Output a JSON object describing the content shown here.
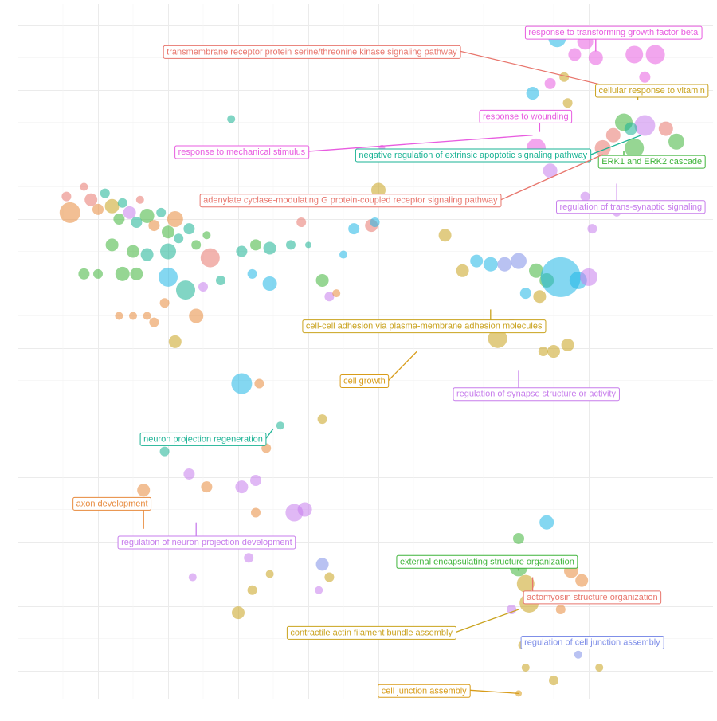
{
  "chart_data": {
    "type": "scatter",
    "title": "",
    "xlabel": "",
    "ylabel": "",
    "xlim": [
      0,
      10
    ],
    "ylim": [
      0,
      10
    ],
    "grid": true,
    "legend": "none",
    "colors": {
      "red": "#e8766d",
      "orange": "#e88a3c",
      "olive": "#c9a21d",
      "green": "#3fb43a",
      "teal": "#1ab394",
      "cyan": "#1fb6e6",
      "blue": "#7f8fe8",
      "purple": "#c77dec",
      "magenta": "#e85ce0",
      "gold": "#d89c1a",
      "grid": "#ebebeb"
    },
    "points": [
      {
        "x": 0.6,
        "y": 7.1,
        "s": 13,
        "c": "orange"
      },
      {
        "x": 0.55,
        "y": 7.35,
        "s": 6,
        "c": "red"
      },
      {
        "x": 0.8,
        "y": 7.5,
        "s": 5,
        "c": "red"
      },
      {
        "x": 0.9,
        "y": 7.3,
        "s": 8,
        "c": "red"
      },
      {
        "x": 1.0,
        "y": 7.15,
        "s": 7,
        "c": "orange"
      },
      {
        "x": 1.1,
        "y": 7.4,
        "s": 6,
        "c": "teal"
      },
      {
        "x": 1.2,
        "y": 7.2,
        "s": 9,
        "c": "olive"
      },
      {
        "x": 1.3,
        "y": 7.0,
        "s": 7,
        "c": "green"
      },
      {
        "x": 1.35,
        "y": 7.25,
        "s": 6,
        "c": "teal"
      },
      {
        "x": 1.45,
        "y": 7.1,
        "s": 8,
        "c": "purple"
      },
      {
        "x": 1.55,
        "y": 6.95,
        "s": 7,
        "c": "teal"
      },
      {
        "x": 1.6,
        "y": 7.3,
        "s": 5,
        "c": "red"
      },
      {
        "x": 1.7,
        "y": 7.05,
        "s": 9,
        "c": "green"
      },
      {
        "x": 1.8,
        "y": 6.9,
        "s": 7,
        "c": "orange"
      },
      {
        "x": 1.9,
        "y": 7.1,
        "s": 6,
        "c": "teal"
      },
      {
        "x": 2.0,
        "y": 6.8,
        "s": 8,
        "c": "green"
      },
      {
        "x": 2.1,
        "y": 7.0,
        "s": 10,
        "c": "orange"
      },
      {
        "x": 2.15,
        "y": 6.7,
        "s": 6,
        "c": "teal"
      },
      {
        "x": 2.3,
        "y": 6.85,
        "s": 7,
        "c": "teal"
      },
      {
        "x": 2.4,
        "y": 6.6,
        "s": 6,
        "c": "green"
      },
      {
        "x": 2.55,
        "y": 6.75,
        "s": 5,
        "c": "green"
      },
      {
        "x": 2.6,
        "y": 6.4,
        "s": 12,
        "c": "red"
      },
      {
        "x": 1.2,
        "y": 6.6,
        "s": 8,
        "c": "green"
      },
      {
        "x": 1.5,
        "y": 6.5,
        "s": 8,
        "c": "green"
      },
      {
        "x": 1.7,
        "y": 6.45,
        "s": 8,
        "c": "teal"
      },
      {
        "x": 2.0,
        "y": 6.5,
        "s": 10,
        "c": "teal"
      },
      {
        "x": 0.8,
        "y": 6.15,
        "s": 7,
        "c": "green"
      },
      {
        "x": 1.0,
        "y": 6.15,
        "s": 6,
        "c": "green"
      },
      {
        "x": 1.35,
        "y": 6.15,
        "s": 9,
        "c": "green"
      },
      {
        "x": 1.55,
        "y": 6.15,
        "s": 8,
        "c": "green"
      },
      {
        "x": 2.0,
        "y": 6.1,
        "s": 12,
        "c": "cyan"
      },
      {
        "x": 2.25,
        "y": 5.9,
        "s": 12,
        "c": "teal"
      },
      {
        "x": 2.4,
        "y": 5.5,
        "s": 9,
        "c": "orange"
      },
      {
        "x": 2.5,
        "y": 5.95,
        "s": 6,
        "c": "purple"
      },
      {
        "x": 2.75,
        "y": 6.05,
        "s": 6,
        "c": "teal"
      },
      {
        "x": 1.3,
        "y": 5.5,
        "s": 5,
        "c": "orange"
      },
      {
        "x": 1.5,
        "y": 5.5,
        "s": 5,
        "c": "orange"
      },
      {
        "x": 1.7,
        "y": 5.5,
        "s": 5,
        "c": "orange"
      },
      {
        "x": 1.8,
        "y": 5.4,
        "s": 6,
        "c": "orange"
      },
      {
        "x": 1.95,
        "y": 5.7,
        "s": 6,
        "c": "orange"
      },
      {
        "x": 3.05,
        "y": 6.5,
        "s": 7,
        "c": "teal"
      },
      {
        "x": 3.25,
        "y": 6.6,
        "s": 7,
        "c": "green"
      },
      {
        "x": 3.45,
        "y": 6.55,
        "s": 8,
        "c": "teal"
      },
      {
        "x": 3.2,
        "y": 6.15,
        "s": 6,
        "c": "cyan"
      },
      {
        "x": 3.45,
        "y": 6.0,
        "s": 9,
        "c": "cyan"
      },
      {
        "x": 3.75,
        "y": 6.6,
        "s": 6,
        "c": "teal"
      },
      {
        "x": 3.9,
        "y": 6.95,
        "s": 6,
        "c": "red"
      },
      {
        "x": 4.0,
        "y": 6.6,
        "s": 4,
        "c": "teal"
      },
      {
        "x": 4.2,
        "y": 6.05,
        "s": 8,
        "c": "green"
      },
      {
        "x": 4.3,
        "y": 5.8,
        "s": 6,
        "c": "purple"
      },
      {
        "x": 4.4,
        "y": 5.85,
        "s": 5,
        "c": "orange"
      },
      {
        "x": 4.5,
        "y": 6.45,
        "s": 5,
        "c": "cyan"
      },
      {
        "x": 4.65,
        "y": 6.85,
        "s": 7,
        "c": "cyan"
      },
      {
        "x": 4.9,
        "y": 6.9,
        "s": 8,
        "c": "red"
      },
      {
        "x": 4.95,
        "y": 6.95,
        "s": 6,
        "c": "cyan"
      },
      {
        "x": 5.0,
        "y": 7.45,
        "s": 9,
        "c": "olive"
      },
      {
        "x": 5.95,
        "y": 6.75,
        "s": 8,
        "c": "olive"
      },
      {
        "x": 2.9,
        "y": 8.55,
        "s": 5,
        "c": "teal"
      },
      {
        "x": 2.1,
        "y": 5.1,
        "s": 8,
        "c": "olive"
      },
      {
        "x": 3.05,
        "y": 4.45,
        "s": 13,
        "c": "cyan"
      },
      {
        "x": 3.3,
        "y": 4.45,
        "s": 6,
        "c": "orange"
      },
      {
        "x": 3.6,
        "y": 3.8,
        "s": 5,
        "c": "teal"
      },
      {
        "x": 4.2,
        "y": 3.9,
        "s": 6,
        "c": "olive"
      },
      {
        "x": 6.2,
        "y": 6.2,
        "s": 8,
        "c": "olive"
      },
      {
        "x": 6.4,
        "y": 6.35,
        "s": 8,
        "c": "cyan"
      },
      {
        "x": 6.6,
        "y": 6.3,
        "s": 9,
        "c": "cyan"
      },
      {
        "x": 6.8,
        "y": 6.3,
        "s": 9,
        "c": "blue"
      },
      {
        "x": 7.0,
        "y": 6.35,
        "s": 10,
        "c": "blue"
      },
      {
        "x": 7.25,
        "y": 6.2,
        "s": 9,
        "c": "green"
      },
      {
        "x": 7.4,
        "y": 6.05,
        "s": 9,
        "c": "green"
      },
      {
        "x": 7.6,
        "y": 6.1,
        "s": 25,
        "c": "cyan"
      },
      {
        "x": 7.85,
        "y": 6.05,
        "s": 11,
        "c": "cyan"
      },
      {
        "x": 8.0,
        "y": 6.1,
        "s": 11,
        "c": "purple"
      },
      {
        "x": 7.3,
        "y": 5.8,
        "s": 8,
        "c": "olive"
      },
      {
        "x": 7.1,
        "y": 5.85,
        "s": 7,
        "c": "cyan"
      },
      {
        "x": 6.7,
        "y": 5.15,
        "s": 12,
        "c": "olive"
      },
      {
        "x": 6.9,
        "y": 5.35,
        "s": 8,
        "c": "purple"
      },
      {
        "x": 7.5,
        "y": 4.95,
        "s": 8,
        "c": "olive"
      },
      {
        "x": 7.7,
        "y": 5.05,
        "s": 8,
        "c": "olive"
      },
      {
        "x": 7.35,
        "y": 4.95,
        "s": 6,
        "c": "olive"
      },
      {
        "x": 7.2,
        "y": 8.95,
        "s": 8,
        "c": "cyan"
      },
      {
        "x": 7.55,
        "y": 9.8,
        "s": 11,
        "c": "cyan"
      },
      {
        "x": 7.8,
        "y": 9.55,
        "s": 8,
        "c": "magenta"
      },
      {
        "x": 7.95,
        "y": 9.75,
        "s": 10,
        "c": "magenta"
      },
      {
        "x": 8.1,
        "y": 9.5,
        "s": 9,
        "c": "magenta"
      },
      {
        "x": 7.45,
        "y": 9.1,
        "s": 7,
        "c": "magenta"
      },
      {
        "x": 7.65,
        "y": 9.2,
        "s": 6,
        "c": "olive"
      },
      {
        "x": 7.7,
        "y": 8.8,
        "s": 6,
        "c": "olive"
      },
      {
        "x": 8.65,
        "y": 9.55,
        "s": 11,
        "c": "magenta"
      },
      {
        "x": 8.95,
        "y": 9.55,
        "s": 12,
        "c": "magenta"
      },
      {
        "x": 8.8,
        "y": 9.2,
        "s": 7,
        "c": "magenta"
      },
      {
        "x": 7.25,
        "y": 8.1,
        "s": 12,
        "c": "magenta"
      },
      {
        "x": 7.45,
        "y": 7.75,
        "s": 9,
        "c": "purple"
      },
      {
        "x": 8.2,
        "y": 8.1,
        "s": 10,
        "c": "red"
      },
      {
        "x": 8.35,
        "y": 8.3,
        "s": 9,
        "c": "red"
      },
      {
        "x": 8.5,
        "y": 8.5,
        "s": 11,
        "c": "green"
      },
      {
        "x": 8.65,
        "y": 8.1,
        "s": 12,
        "c": "green"
      },
      {
        "x": 8.8,
        "y": 8.45,
        "s": 13,
        "c": "purple"
      },
      {
        "x": 8.6,
        "y": 8.4,
        "s": 8,
        "c": "teal"
      },
      {
        "x": 9.1,
        "y": 8.4,
        "s": 9,
        "c": "red"
      },
      {
        "x": 9.25,
        "y": 8.2,
        "s": 10,
        "c": "green"
      },
      {
        "x": 8.2,
        "y": 7.2,
        "s": 7,
        "c": "purple"
      },
      {
        "x": 7.95,
        "y": 7.35,
        "s": 6,
        "c": "purple"
      },
      {
        "x": 8.05,
        "y": 6.85,
        "s": 6,
        "c": "purple"
      },
      {
        "x": 8.4,
        "y": 7.1,
        "s": 5,
        "c": "purple"
      },
      {
        "x": 5.05,
        "y": 8.1,
        "s": 4,
        "c": "magenta"
      },
      {
        "x": 1.95,
        "y": 3.4,
        "s": 6,
        "c": "teal"
      },
      {
        "x": 2.3,
        "y": 3.05,
        "s": 7,
        "c": "purple"
      },
      {
        "x": 2.55,
        "y": 2.85,
        "s": 7,
        "c": "orange"
      },
      {
        "x": 1.65,
        "y": 2.8,
        "s": 8,
        "c": "orange"
      },
      {
        "x": 3.4,
        "y": 3.45,
        "s": 6,
        "c": "orange"
      },
      {
        "x": 3.05,
        "y": 2.85,
        "s": 8,
        "c": "purple"
      },
      {
        "x": 3.25,
        "y": 2.95,
        "s": 7,
        "c": "purple"
      },
      {
        "x": 3.8,
        "y": 2.45,
        "s": 11,
        "c": "purple"
      },
      {
        "x": 3.95,
        "y": 2.5,
        "s": 9,
        "c": "purple"
      },
      {
        "x": 3.25,
        "y": 2.45,
        "s": 6,
        "c": "orange"
      },
      {
        "x": 2.35,
        "y": 1.45,
        "s": 5,
        "c": "purple"
      },
      {
        "x": 3.15,
        "y": 1.75,
        "s": 6,
        "c": "purple"
      },
      {
        "x": 3.2,
        "y": 1.25,
        "s": 6,
        "c": "olive"
      },
      {
        "x": 3.45,
        "y": 1.5,
        "s": 5,
        "c": "olive"
      },
      {
        "x": 3.0,
        "y": 0.9,
        "s": 8,
        "c": "olive"
      },
      {
        "x": 4.2,
        "y": 1.65,
        "s": 8,
        "c": "blue"
      },
      {
        "x": 4.3,
        "y": 1.45,
        "s": 6,
        "c": "olive"
      },
      {
        "x": 4.15,
        "y": 1.25,
        "s": 5,
        "c": "purple"
      },
      {
        "x": 7.4,
        "y": 2.3,
        "s": 9,
        "c": "cyan"
      },
      {
        "x": 7.0,
        "y": 2.05,
        "s": 7,
        "c": "green"
      },
      {
        "x": 7.0,
        "y": 1.6,
        "s": 11,
        "c": "green"
      },
      {
        "x": 7.1,
        "y": 1.35,
        "s": 11,
        "c": "olive"
      },
      {
        "x": 7.15,
        "y": 1.05,
        "s": 12,
        "c": "olive"
      },
      {
        "x": 6.9,
        "y": 0.95,
        "s": 6,
        "c": "purple"
      },
      {
        "x": 7.75,
        "y": 1.55,
        "s": 9,
        "c": "orange"
      },
      {
        "x": 7.9,
        "y": 1.4,
        "s": 8,
        "c": "orange"
      },
      {
        "x": 7.6,
        "y": 0.95,
        "s": 6,
        "c": "orange"
      },
      {
        "x": 7.9,
        "y": 0.45,
        "s": 5,
        "c": "red"
      },
      {
        "x": 7.05,
        "y": 0.4,
        "s": 5,
        "c": "olive"
      },
      {
        "x": 7.1,
        "y": 0.05,
        "s": 5,
        "c": "olive"
      },
      {
        "x": 7.5,
        "y": -0.15,
        "s": 6,
        "c": "olive"
      },
      {
        "x": 8.15,
        "y": 0.05,
        "s": 5,
        "c": "olive"
      },
      {
        "x": 7.85,
        "y": 0.25,
        "s": 5,
        "c": "blue"
      },
      {
        "x": 7.0,
        "y": -0.35,
        "s": 4,
        "c": "gold"
      }
    ],
    "labels": [
      {
        "text": "response to transforming growth factor beta",
        "c": "magenta",
        "lx": 8.35,
        "ly": 9.9,
        "px": 8.1,
        "py": 9.6
      },
      {
        "text": "transmembrane receptor protein serine/threonine kinase signaling pathway",
        "c": "red",
        "lx": 4.05,
        "ly": 9.6,
        "px": 8.5,
        "py": 9.0
      },
      {
        "text": "cellular response to vitamin",
        "c": "olive",
        "lx": 8.9,
        "ly": 9.0,
        "px": 8.7,
        "py": 8.85
      },
      {
        "text": "response to wounding",
        "c": "magenta",
        "lx": 7.1,
        "ly": 8.6,
        "px": 7.3,
        "py": 8.35
      },
      {
        "text": "response to mechanical stimulus",
        "c": "magenta",
        "lx": 3.05,
        "ly": 8.05,
        "px": 7.2,
        "py": 8.3
      },
      {
        "text": "negative regulation of extrinsic apoptotic signaling pathway",
        "c": "teal",
        "lx": 6.35,
        "ly": 8.0,
        "px": 8.75,
        "py": 8.3
      },
      {
        "text": "ERK1 and ERK2 cascade",
        "c": "green",
        "lx": 8.9,
        "ly": 7.9,
        "px": 8.5,
        "py": 8.05
      },
      {
        "text": "adenylate cyclase-modulating G protein-coupled receptor signaling pathway",
        "c": "red",
        "lx": 4.6,
        "ly": 7.3,
        "px": 8.2,
        "py": 8.0
      },
      {
        "text": "regulation of trans-synaptic signaling",
        "c": "purple",
        "lx": 8.6,
        "ly": 7.2,
        "px": 8.4,
        "py": 7.55
      },
      {
        "text": "cell-cell adhesion via plasma-membrane adhesion molecules",
        "c": "olive",
        "lx": 5.65,
        "ly": 5.35,
        "px": 6.6,
        "py": 5.6
      },
      {
        "text": "cell growth",
        "c": "gold",
        "lx": 4.8,
        "ly": 4.5,
        "px": 5.55,
        "py": 4.95
      },
      {
        "text": "regulation of synapse structure or activity",
        "c": "purple",
        "lx": 7.25,
        "ly": 4.3,
        "px": 7.0,
        "py": 4.65
      },
      {
        "text": "neuron projection regeneration",
        "c": "teal",
        "lx": 2.5,
        "ly": 3.6,
        "px": 3.5,
        "py": 3.75
      },
      {
        "text": "axon development",
        "c": "orange",
        "lx": 1.2,
        "ly": 2.6,
        "px": 1.65,
        "py": 2.2
      },
      {
        "text": "regulation of neuron projection development",
        "c": "purple",
        "lx": 2.55,
        "ly": 2.0,
        "px": 2.4,
        "py": 2.3
      },
      {
        "text": "external encapsulating structure organization",
        "c": "green",
        "lx": 6.55,
        "ly": 1.7,
        "px": 7.0,
        "py": 1.55
      },
      {
        "text": "actomyosin structure organization",
        "c": "red",
        "lx": 8.05,
        "ly": 1.15,
        "px": 7.2,
        "py": 1.45
      },
      {
        "text": "contractile actin filament bundle assembly",
        "c": "olive",
        "lx": 4.9,
        "ly": 0.6,
        "px": 7.0,
        "py": 0.95
      },
      {
        "text": "regulation of cell junction assembly",
        "c": "blue",
        "lx": 8.05,
        "ly": 0.45,
        "px": 7.75,
        "py": 0.35
      },
      {
        "text": "cell junction assembly",
        "c": "gold",
        "lx": 5.65,
        "ly": -0.3,
        "px": 7.0,
        "py": -0.35
      }
    ]
  }
}
